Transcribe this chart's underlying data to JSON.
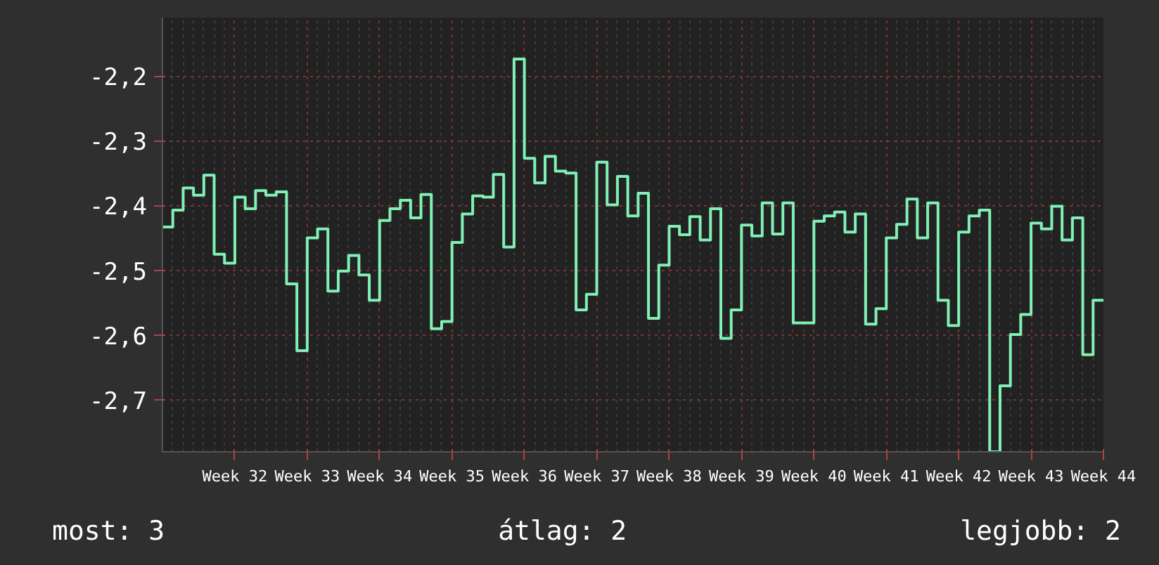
{
  "chart_data": {
    "type": "step",
    "categories": [
      null,
      null,
      null,
      null,
      null,
      null,
      null,
      "Week 32",
      null,
      null,
      null,
      null,
      null,
      null,
      "Week 33",
      null,
      null,
      null,
      null,
      null,
      null,
      "Week 34",
      null,
      null,
      null,
      null,
      null,
      null,
      "Week 35",
      null,
      null,
      null,
      null,
      null,
      null,
      "Week 36",
      null,
      null,
      null,
      null,
      null,
      null,
      "Week 37",
      null,
      null,
      null,
      null,
      null,
      null,
      "Week 38",
      null,
      null,
      null,
      null,
      null,
      null,
      "Week 39",
      null,
      null,
      null,
      null,
      null,
      null,
      "Week 40",
      null,
      null,
      null,
      null,
      null,
      null,
      "Week 41",
      null,
      null,
      null,
      null,
      null,
      null,
      "Week 42",
      null,
      null,
      null,
      null,
      null,
      null,
      "Week 43",
      null,
      null,
      null,
      null,
      null,
      null,
      "Week 44"
    ],
    "series": [
      {
        "color": "#80f0b4",
        "values": [
          -2.433,
          -2.407,
          -2.373,
          -2.384,
          -2.353,
          -2.475,
          -2.489,
          -2.387,
          -2.405,
          -2.377,
          -2.384,
          -2.379,
          -2.521,
          -2.624,
          -2.45,
          -2.436,
          -2.532,
          -2.501,
          -2.477,
          -2.507,
          -2.546,
          -2.423,
          -2.405,
          -2.392,
          -2.419,
          -2.383,
          -2.59,
          -2.579,
          -2.457,
          -2.413,
          -2.385,
          -2.387,
          -2.352,
          -2.464,
          -2.174,
          -2.327,
          -2.365,
          -2.324,
          -2.347,
          -2.35,
          -2.561,
          -2.537,
          -2.333,
          -2.399,
          -2.355,
          -2.416,
          -2.381,
          -2.574,
          -2.492,
          -2.432,
          -2.445,
          -2.417,
          -2.453,
          -2.405,
          -2.605,
          -2.561,
          -2.43,
          -2.447,
          -2.396,
          -2.444,
          -2.396,
          -2.581,
          -2.581,
          -2.424,
          -2.416,
          -2.41,
          -2.441,
          -2.413,
          -2.583,
          -2.559,
          -2.45,
          -2.429,
          -2.39,
          -2.45,
          -2.396,
          -2.546,
          -2.585,
          -2.441,
          -2.416,
          -2.407,
          -2.78,
          -2.678,
          -2.599,
          -2.568,
          -2.427,
          -2.436,
          -2.401,
          -2.453,
          -2.419,
          -2.63,
          -2.546,
          -2.546
        ]
      }
    ],
    "ylim": [
      -2.78,
      -2.11
    ],
    "yticks": [
      {
        "value": -2.7,
        "label": "-2,7"
      },
      {
        "value": -2.6,
        "label": "-2,6"
      },
      {
        "value": -2.5,
        "label": "-2,5"
      },
      {
        "value": -2.4,
        "label": "-2,4"
      },
      {
        "value": -2.3,
        "label": "-2,3"
      },
      {
        "value": -2.2,
        "label": "-2,2"
      }
    ],
    "grid": true,
    "annotations": [
      "most: 3",
      "átlag: 2",
      "legjobb: 2"
    ]
  }
}
